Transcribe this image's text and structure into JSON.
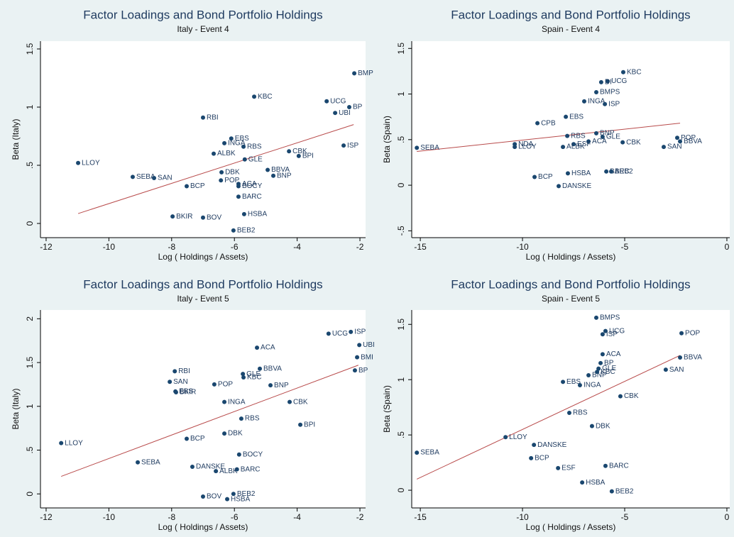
{
  "chart_data": [
    {
      "type": "scatter",
      "title": "Factor Loadings and Bond Portfolio Holdings",
      "subtitle": "Italy - Event 4",
      "x_label": "Log ( Holdings / Assets)",
      "y_label": "Beta (Italy)",
      "xlim": [
        -12.18,
        -1.82
      ],
      "ylim": [
        -0.122,
        1.567
      ],
      "xticks": [
        -12,
        -10,
        -8,
        -6,
        -4,
        -2
      ],
      "yticks": [
        0,
        {
          "value": 0.5,
          "label": ".5"
        },
        1,
        1.5
      ],
      "color": "#1a476f",
      "grid": false,
      "point_labels": [
        "BMP",
        "KBC",
        "UCG",
        "BP",
        "UBI",
        "RBI",
        "EBS",
        "INGA",
        "RBS",
        "ISP",
        "ALBK",
        "CBK",
        "BPI",
        "GLE",
        "LLOY",
        "DBK",
        "BBVA",
        "BNP",
        "SEBA",
        "SAN",
        "POP",
        "ACA",
        "BCP",
        "BOCY",
        "BARC",
        "HSBA",
        "BKIR",
        "BOV",
        "BEB2"
      ],
      "x": [
        -2.18,
        -5.37,
        -3.06,
        -2.34,
        -2.79,
        -7.0,
        -6.1,
        -6.32,
        -5.71,
        -2.52,
        -6.66,
        -4.26,
        -3.95,
        -5.67,
        -10.98,
        -6.41,
        -4.94,
        -4.76,
        -9.24,
        -8.56,
        -6.43,
        -5.87,
        -7.52,
        -5.87,
        -5.87,
        -5.69,
        -7.97,
        -7.0,
        -6.03
      ],
      "y": [
        1.29,
        1.09,
        1.05,
        1.0,
        0.95,
        0.91,
        0.73,
        0.69,
        0.66,
        0.67,
        0.6,
        0.62,
        0.58,
        0.55,
        0.52,
        0.44,
        0.46,
        0.41,
        0.4,
        0.39,
        0.37,
        0.34,
        0.32,
        0.32,
        0.23,
        0.08,
        0.06,
        0.05,
        -0.06
      ],
      "fit_line": {
        "x": [
          -10.98,
          -2.2
        ],
        "y": [
          0.085,
          0.85
        ],
        "color": "#b84a4a"
      }
    },
    {
      "type": "scatter",
      "title": "Factor Loadings and Bond Portfolio Holdings",
      "subtitle": "Spain - Event 4",
      "x_label": "Log ( Holdings / Assets)",
      "y_label": "Beta (Spain)",
      "xlim": [
        -15.42,
        0.14
      ],
      "ylim": [
        -0.575,
        1.58
      ],
      "xticks": [
        -15,
        -10,
        -5,
        0
      ],
      "yticks": [
        {
          "value": -0.5,
          "label": "-.5"
        },
        0,
        {
          "value": 0.5,
          "label": ".5"
        },
        1,
        1.5
      ],
      "color": "#1a476f",
      "grid": false,
      "point_labels": [
        "KBC",
        "UCG",
        "DI",
        "BMPS",
        "INGA",
        "ISP",
        "EBS",
        "CPB",
        "BNP",
        "RBS",
        "GLE",
        "ACA",
        "ESF",
        "ALBK",
        "CBK",
        "POP",
        "BBVA",
        "SAN",
        "SEBA",
        "NDA",
        "LLOY",
        "BCP",
        "DANSKE",
        "HSBA",
        "BARC",
        "BEB2"
      ],
      "x": [
        -5.07,
        -5.83,
        -6.15,
        -6.39,
        -6.98,
        -5.97,
        -7.88,
        -9.27,
        -6.39,
        -7.81,
        -6.08,
        -6.77,
        -7.5,
        -8.02,
        -5.1,
        -2.43,
        -2.29,
        -3.09,
        -15.17,
        -10.38,
        -10.38,
        -9.41,
        -8.23,
        -7.78,
        -5.9,
        -5.66
      ],
      "y": [
        1.24,
        1.14,
        1.13,
        1.02,
        0.92,
        0.89,
        0.75,
        0.68,
        0.57,
        0.54,
        0.53,
        0.48,
        0.45,
        0.42,
        0.47,
        0.52,
        0.48,
        0.42,
        0.41,
        0.45,
        0.42,
        0.09,
        -0.01,
        0.13,
        0.15,
        0.15
      ],
      "fit_line": {
        "x": [
          -15.17,
          -2.29
        ],
        "y": [
          0.37,
          0.68
        ],
        "color": "#b84a4a"
      }
    },
    {
      "type": "scatter",
      "title": "Factor Loadings and Bond Portfolio Holdings",
      "subtitle": "Italy - Event 5",
      "x_label": "Log ( Holdings / Assets)",
      "y_label": "Beta (Italy)",
      "xlim": [
        -12.18,
        -1.82
      ],
      "ylim": [
        -0.16,
        2.1
      ],
      "xticks": [
        -12,
        -10,
        -8,
        -6,
        -4,
        -2
      ],
      "yticks": [
        0,
        {
          "value": 0.5,
          "label": ".5"
        },
        1,
        1.5,
        2
      ],
      "color": "#1a476f",
      "grid": false,
      "point_labels": [
        "UCG",
        "ISP",
        "UBI",
        "BMI",
        "BP",
        "ACA",
        "RBI",
        "BBVA",
        "GLE",
        "KBC",
        "SAN",
        "POP",
        "BNP",
        "EBS",
        "BKIR",
        "INGA",
        "CBK",
        "RBS",
        "BPI",
        "DBK",
        "BCP",
        "LLOY",
        "BOCY",
        "SEBA",
        "DANSKE",
        "BARC",
        "ALBK",
        "BEB2",
        "BOV",
        "HSBA"
      ],
      "x": [
        -3.0,
        -2.29,
        -2.02,
        -2.09,
        -2.16,
        -5.28,
        -7.9,
        -5.19,
        -5.73,
        -5.71,
        -8.06,
        -6.64,
        -4.85,
        -7.88,
        -7.86,
        -6.32,
        -4.24,
        -5.78,
        -3.9,
        -6.32,
        -7.52,
        -11.52,
        -5.85,
        -9.08,
        -7.34,
        -5.92,
        -6.59,
        -6.03,
        -7.0,
        -6.23
      ],
      "y": [
        1.83,
        1.85,
        1.7,
        1.56,
        1.41,
        1.67,
        1.4,
        1.43,
        1.37,
        1.33,
        1.28,
        1.25,
        1.24,
        1.17,
        1.16,
        1.05,
        1.05,
        0.86,
        0.79,
        0.69,
        0.63,
        0.58,
        0.45,
        0.36,
        0.31,
        0.28,
        0.26,
        0.0,
        -0.03,
        -0.06
      ],
      "fit_line": {
        "x": [
          -11.52,
          -2.05
        ],
        "y": [
          0.2,
          1.47
        ],
        "color": "#b84a4a"
      }
    },
    {
      "type": "scatter",
      "title": "Factor Loadings and Bond Portfolio Holdings",
      "subtitle": "Spain - Event 5",
      "x_label": "Log ( Holdings / Assets)",
      "y_label": "Beta (Spain)",
      "xlim": [
        -15.42,
        0.14
      ],
      "ylim": [
        -0.16,
        1.63
      ],
      "xticks": [
        -15,
        -10,
        -5,
        0
      ],
      "yticks": [
        0,
        {
          "value": 0.5,
          "label": ".5"
        },
        1,
        1.5
      ],
      "color": "#1a476f",
      "grid": false,
      "point_labels": [
        "BMPS",
        "UCG",
        "ISP",
        "POP",
        "ACA",
        "BBVA",
        "BP",
        "GLE",
        "SAN",
        "BNP",
        "KBC",
        "EBS",
        "INGA",
        "CBK",
        "RBS",
        "DBK",
        "LLOY",
        "DANSKE",
        "SEBA",
        "BCP",
        "ESF",
        "BARC",
        "HSBA",
        "BEB2"
      ],
      "x": [
        -6.39,
        -5.94,
        -6.08,
        -2.22,
        -6.08,
        -2.29,
        -6.18,
        -6.28,
        -2.99,
        -6.77,
        -6.35,
        -8.02,
        -7.19,
        -5.21,
        -7.71,
        -6.6,
        -10.83,
        -9.44,
        -15.17,
        -9.58,
        -8.26,
        -5.94,
        -7.08,
        -5.63
      ],
      "y": [
        1.56,
        1.44,
        1.41,
        1.42,
        1.23,
        1.2,
        1.15,
        1.1,
        1.09,
        1.04,
        1.07,
        0.98,
        0.95,
        0.85,
        0.7,
        0.58,
        0.48,
        0.41,
        0.34,
        0.29,
        0.2,
        0.22,
        0.07,
        -0.01
      ],
      "fit_line": {
        "x": [
          -15.17,
          -2.29
        ],
        "y": [
          0.1,
          1.22
        ],
        "color": "#b84a4a"
      }
    }
  ]
}
